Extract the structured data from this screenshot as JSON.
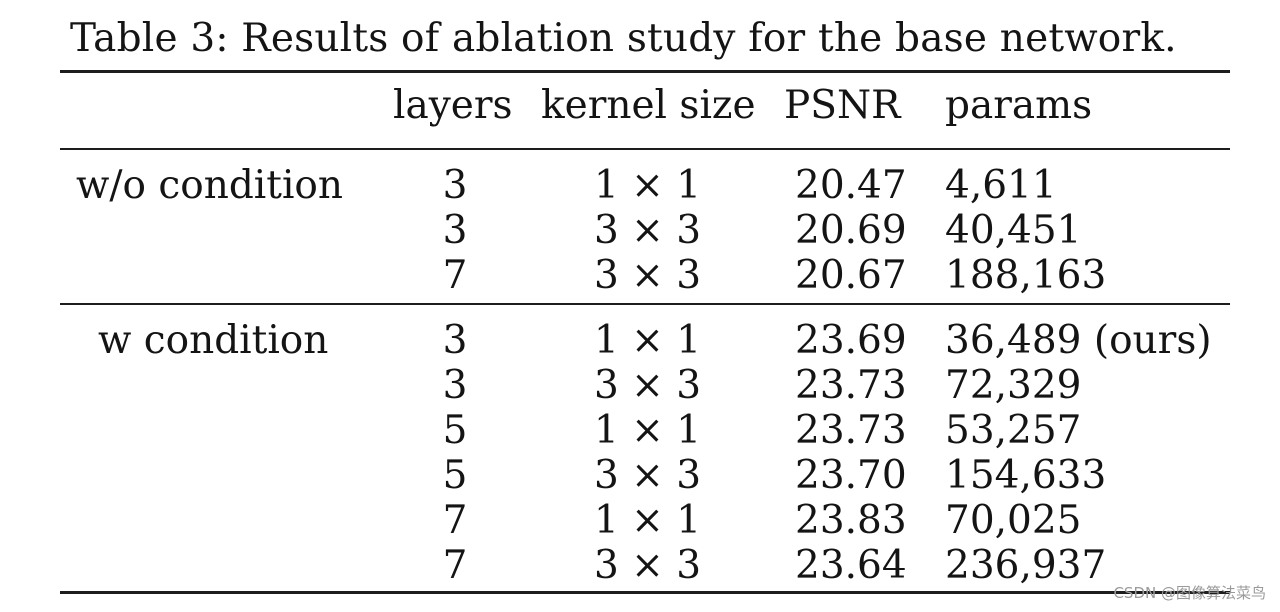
{
  "caption": "Table 3: Results of ablation study for the base network.",
  "columns": [
    "layers",
    "kernel size",
    "PSNR",
    "params"
  ],
  "groups": [
    {
      "label": "w/o condition",
      "rows": [
        {
          "layers": "3",
          "kernel": "1 × 1",
          "psnr": "20.47",
          "params": "4,611"
        },
        {
          "layers": "3",
          "kernel": "3 × 3",
          "psnr": "20.69",
          "params": "40,451"
        },
        {
          "layers": "7",
          "kernel": "3 × 3",
          "psnr": "20.67",
          "params": "188,163"
        }
      ]
    },
    {
      "label": "w condition",
      "rows": [
        {
          "layers": "3",
          "kernel": "1 × 1",
          "psnr": "23.69",
          "params": "36,489 (ours)"
        },
        {
          "layers": "3",
          "kernel": "3 × 3",
          "psnr": "23.73",
          "params": "72,329"
        },
        {
          "layers": "5",
          "kernel": "1 × 1",
          "psnr": "23.73",
          "params": "53,257"
        },
        {
          "layers": "5",
          "kernel": "3 × 3",
          "psnr": "23.70",
          "params": "154,633"
        },
        {
          "layers": "7",
          "kernel": "1 × 1",
          "psnr": "23.83",
          "params": "70,025"
        },
        {
          "layers": "7",
          "kernel": "3 × 3",
          "psnr": "23.64",
          "params": "236,937"
        }
      ]
    }
  ],
  "watermark": "CSDN @图像算法菜鸟"
}
